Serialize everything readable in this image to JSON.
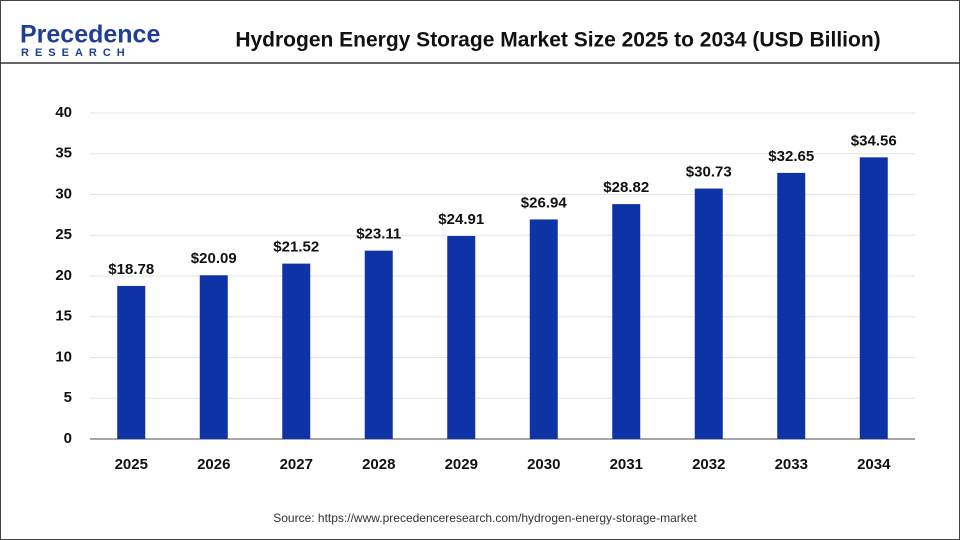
{
  "logo": {
    "name": "Precedence",
    "sub": "RESEARCH"
  },
  "chart_data": {
    "type": "bar",
    "title": "Hydrogen Energy Storage Market Size 2025 to 2034 (USD Billion)",
    "categories": [
      "2025",
      "2026",
      "2027",
      "2028",
      "2029",
      "2030",
      "2031",
      "2032",
      "2033",
      "2034"
    ],
    "values": [
      18.78,
      20.09,
      21.52,
      23.11,
      24.91,
      26.94,
      28.82,
      30.73,
      32.65,
      34.56
    ],
    "value_labels": [
      "$18.78",
      "$20.09",
      "$21.52",
      "$23.11",
      "$24.91",
      "$26.94",
      "$28.82",
      "$30.73",
      "$32.65",
      "$34.56"
    ],
    "color": "#0d33a6",
    "ylim": [
      0,
      40
    ],
    "yticks": [
      0,
      5,
      10,
      15,
      20,
      25,
      30,
      35,
      40
    ],
    "grid": true,
    "source": "Source: https://www.precedenceresearch.com/hydrogen-energy-storage-market"
  }
}
